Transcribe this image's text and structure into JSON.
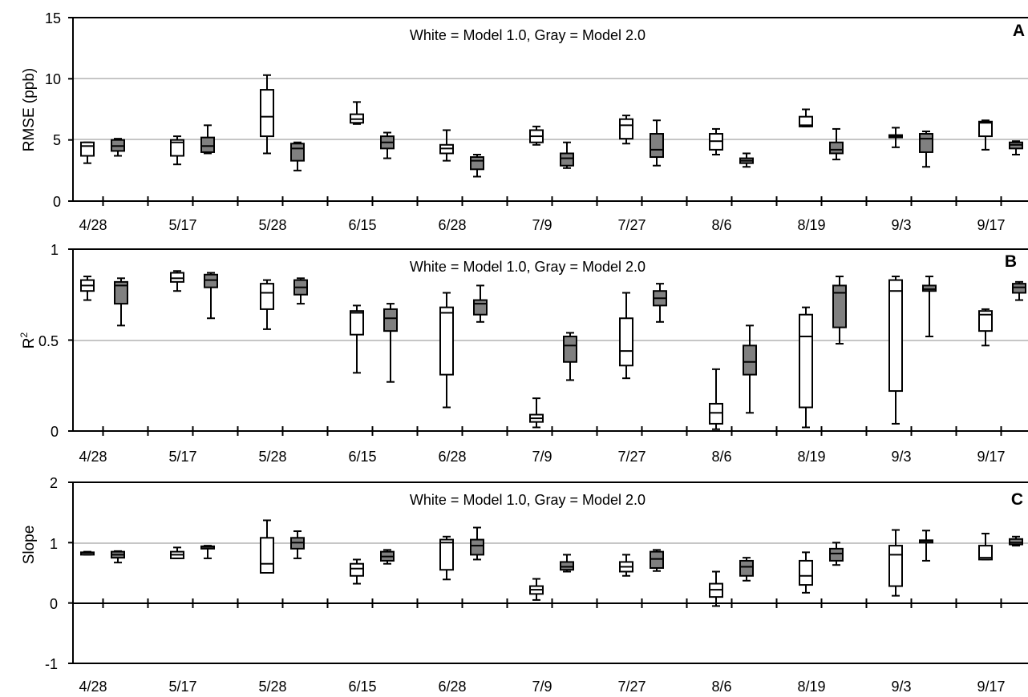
{
  "chart_data": [
    {
      "panel": "A",
      "type": "box",
      "ylabel": "RMSE (ppb)",
      "ylim": [
        0,
        15
      ],
      "yticks": [
        "0",
        "5",
        "10",
        "15"
      ],
      "categories": [
        "4/28",
        "5/17",
        "5/28",
        "6/15",
        "6/28",
        "7/9",
        "7/27",
        "8/6",
        "8/19",
        "9/3",
        "9/17"
      ],
      "annotation": "White = Model 1.0, Gray = Model 2.0",
      "gridlines": [
        5,
        10
      ],
      "series": [
        {
          "name": "Model 1.0",
          "color": "#ffffff",
          "boxes": [
            {
              "min": 3.1,
              "q1": 3.7,
              "median": 4.5,
              "q3": 4.8,
              "max": 4.8
            },
            {
              "min": 3.0,
              "q1": 3.7,
              "median": 4.8,
              "q3": 5.0,
              "max": 5.3
            },
            {
              "min": 3.9,
              "q1": 5.3,
              "median": 6.9,
              "q3": 9.1,
              "max": 10.3
            },
            {
              "min": 6.3,
              "q1": 6.4,
              "median": 6.7,
              "q3": 7.1,
              "max": 8.1
            },
            {
              "min": 3.3,
              "q1": 3.9,
              "median": 4.3,
              "q3": 4.6,
              "max": 5.8
            },
            {
              "min": 4.6,
              "q1": 4.8,
              "median": 5.3,
              "q3": 5.8,
              "max": 6.1
            },
            {
              "min": 4.7,
              "q1": 5.1,
              "median": 6.2,
              "q3": 6.7,
              "max": 7.0
            },
            {
              "min": 3.8,
              "q1": 4.2,
              "median": 4.9,
              "q3": 5.5,
              "max": 5.9
            },
            {
              "min": 6.1,
              "q1": 6.1,
              "median": 6.2,
              "q3": 6.9,
              "max": 7.5
            },
            {
              "min": 4.4,
              "q1": 5.2,
              "median": 5.3,
              "q3": 5.4,
              "max": 6.0
            },
            {
              "min": 4.2,
              "q1": 5.3,
              "median": 6.4,
              "q3": 6.5,
              "max": 6.6
            }
          ]
        },
        {
          "name": "Model 2.0",
          "color": "#808080",
          "boxes": [
            {
              "min": 3.7,
              "q1": 4.1,
              "median": 4.5,
              "q3": 5.0,
              "max": 5.1
            },
            {
              "min": 3.9,
              "q1": 4.0,
              "median": 4.5,
              "q3": 5.2,
              "max": 6.2
            },
            {
              "min": 2.5,
              "q1": 3.3,
              "median": 4.3,
              "q3": 4.7,
              "max": 4.8
            },
            {
              "min": 3.5,
              "q1": 4.3,
              "median": 4.8,
              "q3": 5.3,
              "max": 5.6
            },
            {
              "min": 2.0,
              "q1": 2.6,
              "median": 3.3,
              "q3": 3.6,
              "max": 3.8
            },
            {
              "min": 2.7,
              "q1": 2.9,
              "median": 3.5,
              "q3": 3.9,
              "max": 4.8
            },
            {
              "min": 2.9,
              "q1": 3.6,
              "median": 4.2,
              "q3": 5.5,
              "max": 6.6
            },
            {
              "min": 2.8,
              "q1": 3.1,
              "median": 3.3,
              "q3": 3.5,
              "max": 3.9
            },
            {
              "min": 3.4,
              "q1": 3.9,
              "median": 4.2,
              "q3": 4.8,
              "max": 5.9
            },
            {
              "min": 2.8,
              "q1": 4.0,
              "median": 5.1,
              "q3": 5.5,
              "max": 5.7
            },
            {
              "min": 3.8,
              "q1": 4.3,
              "median": 4.6,
              "q3": 4.8,
              "max": 4.9
            }
          ]
        }
      ]
    },
    {
      "panel": "B",
      "type": "box",
      "ylabel": "R",
      "ylabel_sup": "2",
      "ylim": [
        0,
        1
      ],
      "yticks": [
        "0",
        "0.5",
        "1"
      ],
      "categories": [
        "4/28",
        "5/17",
        "5/28",
        "6/15",
        "6/28",
        "7/9",
        "7/27",
        "8/6",
        "8/19",
        "9/3",
        "9/17"
      ],
      "annotation": "White = Model 1.0, Gray = Model 2.0",
      "gridlines": [
        0.5
      ],
      "series": [
        {
          "name": "Model 1.0",
          "color": "#ffffff",
          "boxes": [
            {
              "min": 0.72,
              "q1": 0.77,
              "median": 0.8,
              "q3": 0.83,
              "max": 0.85
            },
            {
              "min": 0.77,
              "q1": 0.82,
              "median": 0.84,
              "q3": 0.87,
              "max": 0.88
            },
            {
              "min": 0.56,
              "q1": 0.67,
              "median": 0.76,
              "q3": 0.81,
              "max": 0.83
            },
            {
              "min": 0.32,
              "q1": 0.53,
              "median": 0.65,
              "q3": 0.66,
              "max": 0.69
            },
            {
              "min": 0.13,
              "q1": 0.31,
              "median": 0.65,
              "q3": 0.68,
              "max": 0.76
            },
            {
              "min": 0.02,
              "q1": 0.05,
              "median": 0.07,
              "q3": 0.09,
              "max": 0.18
            },
            {
              "min": 0.29,
              "q1": 0.36,
              "median": 0.44,
              "q3": 0.62,
              "max": 0.76
            },
            {
              "min": 0.01,
              "q1": 0.04,
              "median": 0.1,
              "q3": 0.15,
              "max": 0.34
            },
            {
              "min": 0.02,
              "q1": 0.13,
              "median": 0.52,
              "q3": 0.64,
              "max": 0.68
            },
            {
              "min": 0.04,
              "q1": 0.22,
              "median": 0.77,
              "q3": 0.83,
              "max": 0.85
            },
            {
              "min": 0.47,
              "q1": 0.55,
              "median": 0.64,
              "q3": 0.66,
              "max": 0.67
            }
          ]
        },
        {
          "name": "Model 2.0",
          "color": "#808080",
          "boxes": [
            {
              "min": 0.58,
              "q1": 0.7,
              "median": 0.8,
              "q3": 0.82,
              "max": 0.84
            },
            {
              "min": 0.62,
              "q1": 0.79,
              "median": 0.83,
              "q3": 0.86,
              "max": 0.87
            },
            {
              "min": 0.7,
              "q1": 0.75,
              "median": 0.79,
              "q3": 0.83,
              "max": 0.84
            },
            {
              "min": 0.27,
              "q1": 0.55,
              "median": 0.62,
              "q3": 0.67,
              "max": 0.7
            },
            {
              "min": 0.6,
              "q1": 0.64,
              "median": 0.7,
              "q3": 0.72,
              "max": 0.8
            },
            {
              "min": 0.28,
              "q1": 0.38,
              "median": 0.47,
              "q3": 0.52,
              "max": 0.54
            },
            {
              "min": 0.6,
              "q1": 0.69,
              "median": 0.73,
              "q3": 0.77,
              "max": 0.81
            },
            {
              "min": 0.1,
              "q1": 0.31,
              "median": 0.38,
              "q3": 0.47,
              "max": 0.58
            },
            {
              "min": 0.48,
              "q1": 0.57,
              "median": 0.76,
              "q3": 0.8,
              "max": 0.85
            },
            {
              "min": 0.52,
              "q1": 0.77,
              "median": 0.78,
              "q3": 0.8,
              "max": 0.85
            },
            {
              "min": 0.72,
              "q1": 0.76,
              "median": 0.79,
              "q3": 0.81,
              "max": 0.82
            }
          ]
        }
      ]
    },
    {
      "panel": "C",
      "type": "box",
      "ylabel": "Slope",
      "ylim": [
        -1,
        2
      ],
      "yticks": [
        "-1",
        "0",
        "1",
        "2"
      ],
      "categories": [
        "4/28",
        "5/17",
        "5/28",
        "6/15",
        "6/28",
        "7/9",
        "7/27",
        "8/6",
        "8/19",
        "9/3",
        "9/17"
      ],
      "annotation": "White = Model 1.0, Gray = Model 2.0",
      "gridlines": [
        1
      ],
      "series": [
        {
          "name": "Model 1.0",
          "color": "#ffffff",
          "boxes": [
            {
              "min": 0.8,
              "q1": 0.8,
              "median": 0.83,
              "q3": 0.84,
              "max": 0.85
            },
            {
              "min": 0.74,
              "q1": 0.74,
              "median": 0.8,
              "q3": 0.85,
              "max": 0.92
            },
            {
              "min": 0.5,
              "q1": 0.5,
              "median": 0.65,
              "q3": 1.08,
              "max": 1.37
            },
            {
              "min": 0.32,
              "q1": 0.45,
              "median": 0.57,
              "q3": 0.65,
              "max": 0.72
            },
            {
              "min": 0.39,
              "q1": 0.55,
              "median": 1.0,
              "q3": 1.05,
              "max": 1.1
            },
            {
              "min": 0.05,
              "q1": 0.15,
              "median": 0.22,
              "q3": 0.28,
              "max": 0.4
            },
            {
              "min": 0.45,
              "q1": 0.52,
              "median": 0.6,
              "q3": 0.68,
              "max": 0.8
            },
            {
              "min": -0.05,
              "q1": 0.1,
              "median": 0.22,
              "q3": 0.32,
              "max": 0.52
            },
            {
              "min": 0.17,
              "q1": 0.3,
              "median": 0.45,
              "q3": 0.7,
              "max": 0.84
            },
            {
              "min": 0.12,
              "q1": 0.28,
              "median": 0.8,
              "q3": 0.95,
              "max": 1.21
            },
            {
              "min": 0.72,
              "q1": 0.72,
              "median": 0.75,
              "q3": 0.95,
              "max": 1.15
            }
          ]
        },
        {
          "name": "Model 2.0",
          "color": "#808080",
          "boxes": [
            {
              "min": 0.67,
              "q1": 0.75,
              "median": 0.8,
              "q3": 0.85,
              "max": 0.86
            },
            {
              "min": 0.74,
              "q1": 0.9,
              "median": 0.93,
              "q3": 0.94,
              "max": 0.95
            },
            {
              "min": 0.74,
              "q1": 0.9,
              "median": 1.0,
              "q3": 1.08,
              "max": 1.19
            },
            {
              "min": 0.65,
              "q1": 0.7,
              "median": 0.77,
              "q3": 0.85,
              "max": 0.88
            },
            {
              "min": 0.72,
              "q1": 0.8,
              "median": 0.95,
              "q3": 1.05,
              "max": 1.25
            },
            {
              "min": 0.52,
              "q1": 0.55,
              "median": 0.6,
              "q3": 0.68,
              "max": 0.8
            },
            {
              "min": 0.53,
              "q1": 0.58,
              "median": 0.73,
              "q3": 0.85,
              "max": 0.88
            },
            {
              "min": 0.37,
              "q1": 0.45,
              "median": 0.6,
              "q3": 0.7,
              "max": 0.75
            },
            {
              "min": 0.63,
              "q1": 0.7,
              "median": 0.82,
              "q3": 0.9,
              "max": 1.0
            },
            {
              "min": 0.7,
              "q1": 1.02,
              "median": 1.03,
              "q3": 1.04,
              "max": 1.2
            },
            {
              "min": 0.95,
              "q1": 0.97,
              "median": 1.0,
              "q3": 1.06,
              "max": 1.1
            }
          ]
        }
      ]
    }
  ]
}
